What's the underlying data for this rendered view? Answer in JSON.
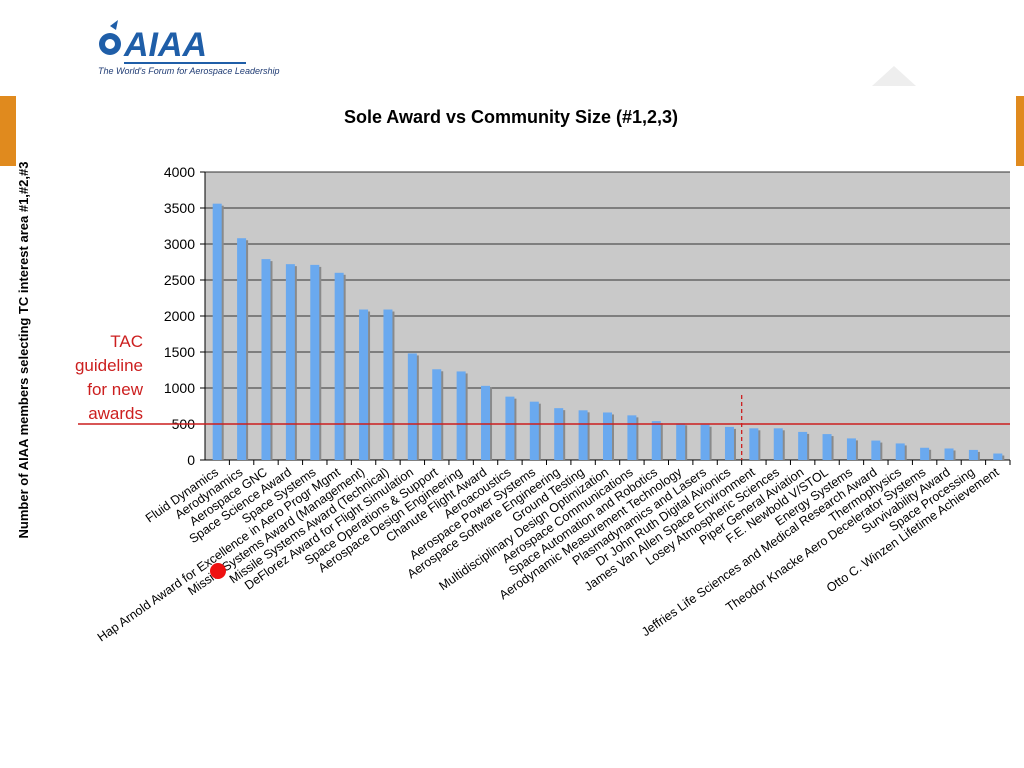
{
  "logo": {
    "text": "AIAA",
    "tagline": "The World's Forum for Aerospace Leadership"
  },
  "annotation": {
    "lines": [
      "TAC",
      "guideline",
      "for new",
      "awards"
    ]
  },
  "colors": {
    "bar": "#6aa9ef",
    "bar_shadow": "#8a8a8a",
    "plot_bg": "#c9c9c9",
    "guideline": "#cc1f1f",
    "accent": "#e08a1e",
    "logo_blue": "#1f5ea8",
    "marker": "#ee1111"
  },
  "chart_data": {
    "type": "bar",
    "title": "Sole Award vs Community Size (#1,2,3)",
    "xlabel": "",
    "ylabel": "Number of AIAA members selecting TC interest area #1,#2,#3",
    "ylim": [
      0,
      4000
    ],
    "yticks": [
      0,
      500,
      1000,
      1500,
      2000,
      2500,
      3000,
      3500,
      4000
    ],
    "grid": true,
    "guideline_value": 500,
    "highlighted_category": "Hap Arnold Award for Excellence in Aero Progr Mgmt",
    "split_after_category": "Dr John Ruth Digital Avionics",
    "categories": [
      "Fluid Dynamics",
      "Aerodynamics",
      "Aerospace GNC",
      "Space Science Award",
      "Space Systems",
      "Hap Arnold Award for Excellence in Aero Progr Mgmt",
      "Missile Systems Award (Management)",
      "Missile Systems Award (Technical)",
      "DeFlorez Award for Flight Simulation",
      "Space Operations & Support",
      "Aerospace Design Engineering",
      "Chanute Flight Award",
      "Aeroacoustics",
      "Aerospace Power Systems",
      "Aerospace Software Engineering",
      "Ground Testing",
      "Multidisciplinary Design Optimization",
      "Aerospace Communications",
      "Space Automation and Robotics",
      "Aerodynamic Measurement Technology",
      "Plasmadynamics and Lasers",
      "Dr John Ruth Digital Avionics",
      "James Van Allen Space Environment",
      "Losey Atmospheric Sciences",
      "Piper General Aviation",
      "F.E. Newbold V/STOL",
      "Energy Systems",
      "Jeffries Life Sciences and Medical Research Award",
      "Thermophysics",
      "Theodor Knacke Aero Decelerator Systems",
      "Survivability Award",
      "Space Processing",
      "Otto C. Winzen Lifetime Achievement"
    ],
    "values": [
      3560,
      3080,
      2790,
      2720,
      2710,
      2600,
      2090,
      2090,
      1480,
      1260,
      1230,
      1030,
      880,
      810,
      720,
      690,
      660,
      620,
      540,
      510,
      490,
      460,
      440,
      440,
      390,
      360,
      300,
      270,
      230,
      170,
      160,
      140,
      90
    ]
  }
}
